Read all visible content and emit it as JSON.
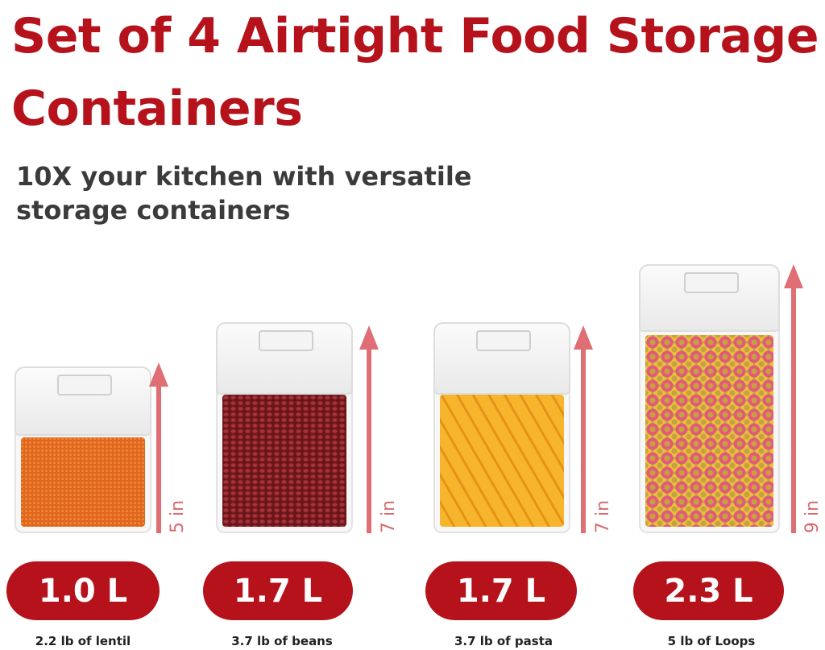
{
  "title": "Set of 4 Airtight Food Storage Containers",
  "title_lines": [
    "Set of 4 Airtight Food Storage",
    "Containers"
  ],
  "subtitle_lines": [
    "10X your kitchen with versatile",
    "storage containers"
  ],
  "brand_color": "#b5121b",
  "containers": [
    {
      "height_label": "5 in",
      "volume": "1.0 L",
      "caption": "2.2 lb of lentil",
      "content_color": "#e0661d"
    },
    {
      "height_label": "7 in",
      "volume": "1.7 L",
      "caption": "3.7 lb of beans",
      "content_color": "#7a1b1f"
    },
    {
      "height_label": "7 in",
      "volume": "1.7 L",
      "caption": "3.7 lb of pasta",
      "content_color": "#f2a51e"
    },
    {
      "height_label": "9 in",
      "volume": "2.3 L",
      "caption": "5 lb of Loops",
      "content_color": "#d9a62a"
    }
  ]
}
